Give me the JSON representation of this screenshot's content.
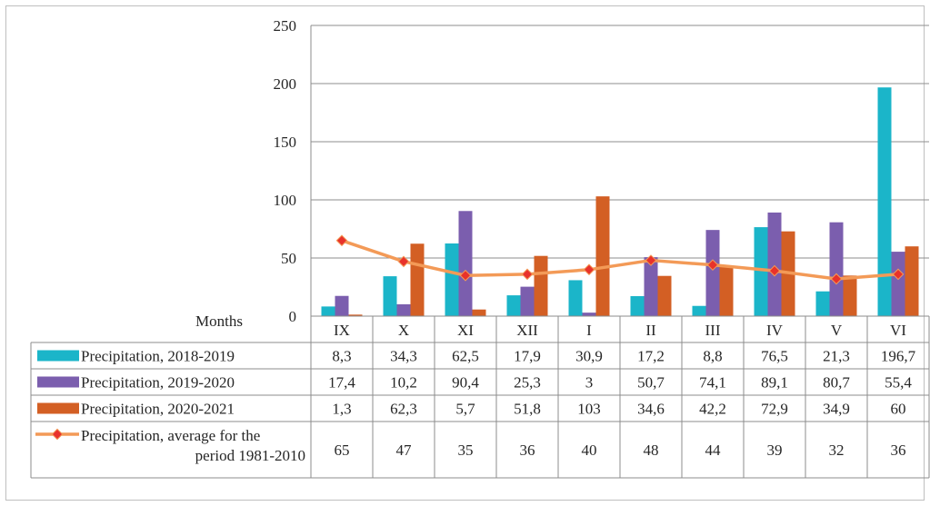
{
  "chart_data": {
    "type": "bar",
    "x_axis_label": "Months",
    "categories": [
      "IX",
      "X",
      "XI",
      "XII",
      "I",
      "II",
      "III",
      "IV",
      "V",
      "VI"
    ],
    "ylim": [
      0,
      250
    ],
    "yticks": [
      0,
      50,
      100,
      150,
      200,
      250
    ],
    "grid": true,
    "legend_placement": "data-table-left",
    "series": [
      {
        "name": "Precipitation, 2018-2019",
        "kind": "bar",
        "color": "#1BB5C9",
        "values": [
          8.3,
          34.3,
          62.5,
          17.9,
          30.9,
          17.2,
          8.8,
          76.5,
          21.3,
          196.7
        ],
        "labels": [
          "8,3",
          "34,3",
          "62,5",
          "17,9",
          "30,9",
          "17,2",
          "8,8",
          "76,5",
          "21,3",
          "196,7"
        ]
      },
      {
        "name": "Precipitation, 2019-2020",
        "kind": "bar",
        "color": "#7B5EAE",
        "values": [
          17.4,
          10.2,
          90.4,
          25.3,
          3,
          50.7,
          74.1,
          89.1,
          80.7,
          55.4
        ],
        "labels": [
          "17,4",
          "10,2",
          "90,4",
          "25,3",
          "3",
          "50,7",
          "74,1",
          "89,1",
          "80,7",
          "55,4"
        ]
      },
      {
        "name": "Precipitation, 2020-2021",
        "kind": "bar",
        "color": "#D35F24",
        "values": [
          1.3,
          62.3,
          5.7,
          51.8,
          103,
          34.6,
          42.2,
          72.9,
          34.9,
          60
        ],
        "labels": [
          "1,3",
          "62,3",
          "5,7",
          "51,8",
          "103",
          "34,6",
          "42,2",
          "72,9",
          "34,9",
          "60"
        ]
      },
      {
        "name": "Precipitation, average for the period 1981-2010",
        "name_lines": [
          "Precipitation, average for the",
          "period 1981-2010"
        ],
        "kind": "line",
        "color": "#F39A57",
        "marker_color": "#E8322B",
        "values": [
          65,
          47,
          35,
          36,
          40,
          48,
          44,
          39,
          32,
          36
        ],
        "labels": [
          "65",
          "47",
          "35",
          "36",
          "40",
          "48",
          "44",
          "39",
          "32",
          "36"
        ]
      }
    ]
  }
}
